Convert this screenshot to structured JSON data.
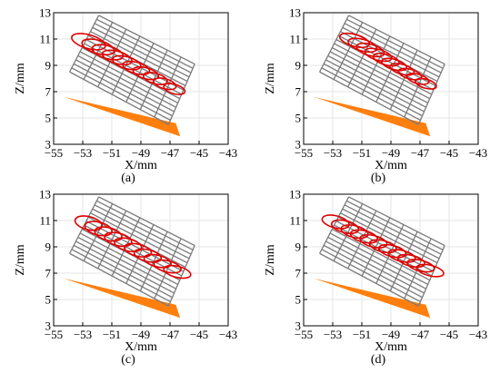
{
  "figure": {
    "panels": [
      {
        "label": "(a)"
      },
      {
        "label": "(b)"
      },
      {
        "label": "(c)"
      },
      {
        "label": "(d)"
      }
    ]
  },
  "colors": {
    "grid": "#e4e4e4",
    "mesh": "#7a7a7a",
    "ellipse": "#e00000",
    "substrate": "#ff7f0e"
  },
  "chart_data": [
    {
      "type": "scatter",
      "panel": "(a)",
      "xlabel": "X/mm",
      "ylabel": "Z/mm",
      "xlim": [
        -55,
        -43
      ],
      "ylim": [
        3,
        13
      ],
      "xticks": [
        -55,
        -53,
        -51,
        -49,
        -47,
        -45,
        -43
      ],
      "yticks": [
        3,
        5,
        7,
        9,
        11,
        13
      ],
      "grid": true,
      "mesh": {
        "corners": [
          [
            -53.9,
            8.5
          ],
          [
            -51.9,
            12.8
          ],
          [
            -45.3,
            9.1
          ],
          [
            -47.1,
            4.5
          ]
        ],
        "cols": 7,
        "rows": 14
      },
      "substrate": [
        [
          -54.3,
          6.6
        ],
        [
          -46.6,
          4.6
        ],
        [
          -46.3,
          3.6
        ]
      ],
      "ellipses": {
        "start": [
          -52.6,
          10.8
        ],
        "end": [
          -46.7,
          7.2
        ],
        "count": 10,
        "rx_start": 1.2,
        "rx_end": 0.75,
        "ry_start": 0.52,
        "ry_end": 0.36,
        "tilt_deg": 16
      }
    },
    {
      "type": "scatter",
      "panel": "(b)",
      "xlabel": "X/mm",
      "ylabel": "Z/mm",
      "xlim": [
        -55,
        -43
      ],
      "ylim": [
        3,
        13
      ],
      "xticks": [
        -55,
        -53,
        -51,
        -49,
        -47,
        -45,
        -43
      ],
      "yticks": [
        3,
        5,
        7,
        9,
        11,
        13
      ],
      "grid": true,
      "mesh": {
        "corners": [
          [
            -53.9,
            8.5
          ],
          [
            -51.9,
            12.8
          ],
          [
            -45.3,
            9.1
          ],
          [
            -47.1,
            4.5
          ]
        ],
        "cols": 7,
        "rows": 14
      },
      "substrate": [
        [
          -54.3,
          6.6
        ],
        [
          -46.6,
          4.6
        ],
        [
          -46.3,
          3.6
        ]
      ],
      "ellipses": {
        "start": [
          -51.5,
          10.9
        ],
        "end": [
          -46.6,
          7.6
        ],
        "count": 10,
        "rx_start": 1.05,
        "rx_end": 0.75,
        "ry_start": 0.45,
        "ry_end": 0.34,
        "tilt_deg": 16
      }
    },
    {
      "type": "scatter",
      "panel": "(c)",
      "xlabel": "X/mm",
      "ylabel": "Z/mm",
      "xlim": [
        -55,
        -43
      ],
      "ylim": [
        3,
        13
      ],
      "xticks": [
        -55,
        -53,
        -51,
        -49,
        -47,
        -45,
        -43
      ],
      "yticks": [
        3,
        5,
        7,
        9,
        11,
        13
      ],
      "grid": true,
      "mesh": {
        "corners": [
          [
            -53.9,
            8.5
          ],
          [
            -51.9,
            12.8
          ],
          [
            -45.3,
            9.1
          ],
          [
            -47.1,
            4.5
          ]
        ],
        "cols": 7,
        "rows": 14
      },
      "substrate": [
        [
          -54.3,
          6.6
        ],
        [
          -46.6,
          4.6
        ],
        [
          -46.3,
          3.6
        ]
      ],
      "ellipses": {
        "start": [
          -52.6,
          10.8
        ],
        "end": [
          -46.5,
          7.1
        ],
        "count": 10,
        "rx_start": 0.95,
        "rx_end": 0.95,
        "ry_start": 0.5,
        "ry_end": 0.42,
        "tilt_deg": 14
      }
    },
    {
      "type": "scatter",
      "panel": "(d)",
      "xlabel": "X/mm",
      "ylabel": "Z/mm",
      "xlim": [
        -55,
        -43
      ],
      "ylim": [
        3,
        13
      ],
      "xticks": [
        -55,
        -53,
        -51,
        -49,
        -47,
        -45,
        -43
      ],
      "yticks": [
        3,
        5,
        7,
        9,
        11,
        13
      ],
      "grid": true,
      "mesh": {
        "corners": [
          [
            -53.9,
            8.5
          ],
          [
            -51.9,
            12.8
          ],
          [
            -45.3,
            9.1
          ],
          [
            -47.1,
            4.5
          ]
        ],
        "cols": 7,
        "rows": 14
      },
      "substrate": [
        [
          -54.3,
          6.6
        ],
        [
          -46.6,
          4.6
        ],
        [
          -46.3,
          3.6
        ]
      ],
      "ellipses": {
        "start": [
          -52.8,
          10.9
        ],
        "end": [
          -46.3,
          7.2
        ],
        "count": 11,
        "rx_start": 0.95,
        "rx_end": 0.95,
        "ry_start": 0.46,
        "ry_end": 0.4,
        "tilt_deg": 14
      }
    }
  ]
}
